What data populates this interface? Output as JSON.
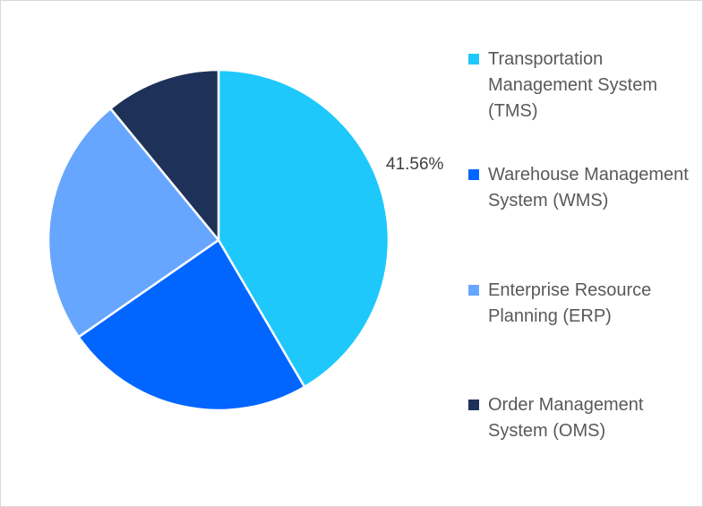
{
  "chart_data": {
    "type": "pie",
    "title": "",
    "categories": [
      "Transportation Management System (TMS)",
      "Warehouse Management System (WMS)",
      "Enterprise Resource Planning (ERP)",
      "Order Management System (OMS)"
    ],
    "values": [
      41.56,
      23.8,
      23.7,
      10.94
    ],
    "colors": [
      "#1ec8fb",
      "#0066ff",
      "#66a6ff",
      "#1e3158"
    ],
    "data_labels": [
      {
        "category": "Transportation Management System (TMS)",
        "text": "41.56%"
      }
    ],
    "legend_position": "right",
    "start_angle_deg": 0,
    "direction": "clockwise"
  },
  "labels": {
    "tms_percent": "41.56%"
  },
  "legend": {
    "items": [
      {
        "label": "Transportation Management System (TMS)",
        "color": "#1ec8fb"
      },
      {
        "label": "Warehouse Management System (WMS)",
        "color": "#0066ff"
      },
      {
        "label": "Enterprise Resource Planning (ERP)",
        "color": "#66a6ff"
      },
      {
        "label": "Order Management System (OMS)",
        "color": "#1e3158"
      }
    ]
  }
}
